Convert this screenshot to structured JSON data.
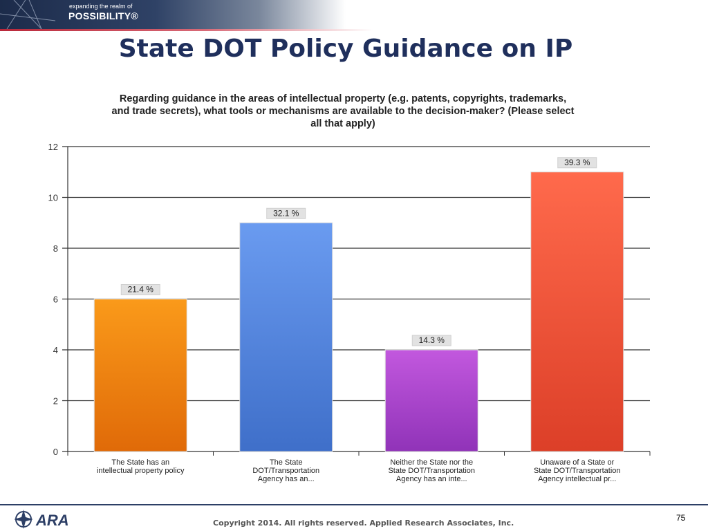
{
  "banner": {
    "tagline_small": "expanding the realm of",
    "tagline_big": "POSSIBILITY®"
  },
  "slide": {
    "title": "State DOT Policy Guidance on IP",
    "page_number": "75",
    "copyright": "Copyright 2014.  All rights reserved.  Applied Research Associates, Inc.",
    "logo_text": "ARA"
  },
  "colors": {
    "title": "#1f2f5c",
    "bar_orange": "#f08a10",
    "bar_blue": "#5b8de0",
    "bar_purple": "#b04bcc",
    "bar_red": "#f0563d"
  },
  "chart_data": {
    "type": "bar",
    "title": "Regarding guidance in the areas of intellectual property (e.g. patents, copyrights, trademarks, and trade secrets), what tools or mechanisms are available to the decision-maker? (Please select all that apply)",
    "title_lines": [
      "Regarding guidance in the areas of intellectual property (e.g. patents, copyrights, trademarks,",
      "and trade secrets), what tools or mechanisms are available to the decision-maker? (Please select",
      "all that apply)"
    ],
    "categories": [
      [
        "The State has an",
        "intellectual property policy"
      ],
      [
        "The State",
        "DOT/Transportation",
        "Agency has an..."
      ],
      [
        "Neither the State nor the",
        "State DOT/Transportation",
        "Agency has an inte..."
      ],
      [
        "Unaware of a State or",
        "State DOT/Transportation",
        "Agency intellectual pr..."
      ]
    ],
    "values": [
      6,
      9,
      4,
      11
    ],
    "data_labels": [
      "21.4 %",
      "32.1 %",
      "14.3 %",
      "39.3 %"
    ],
    "bar_colors": [
      "#f08a10",
      "#5b8de0",
      "#b04bcc",
      "#f0563d"
    ],
    "ylim": [
      0,
      12
    ],
    "yticks": [
      0,
      2,
      4,
      6,
      8,
      10,
      12
    ],
    "grid": true,
    "xlabel": "",
    "ylabel": ""
  }
}
